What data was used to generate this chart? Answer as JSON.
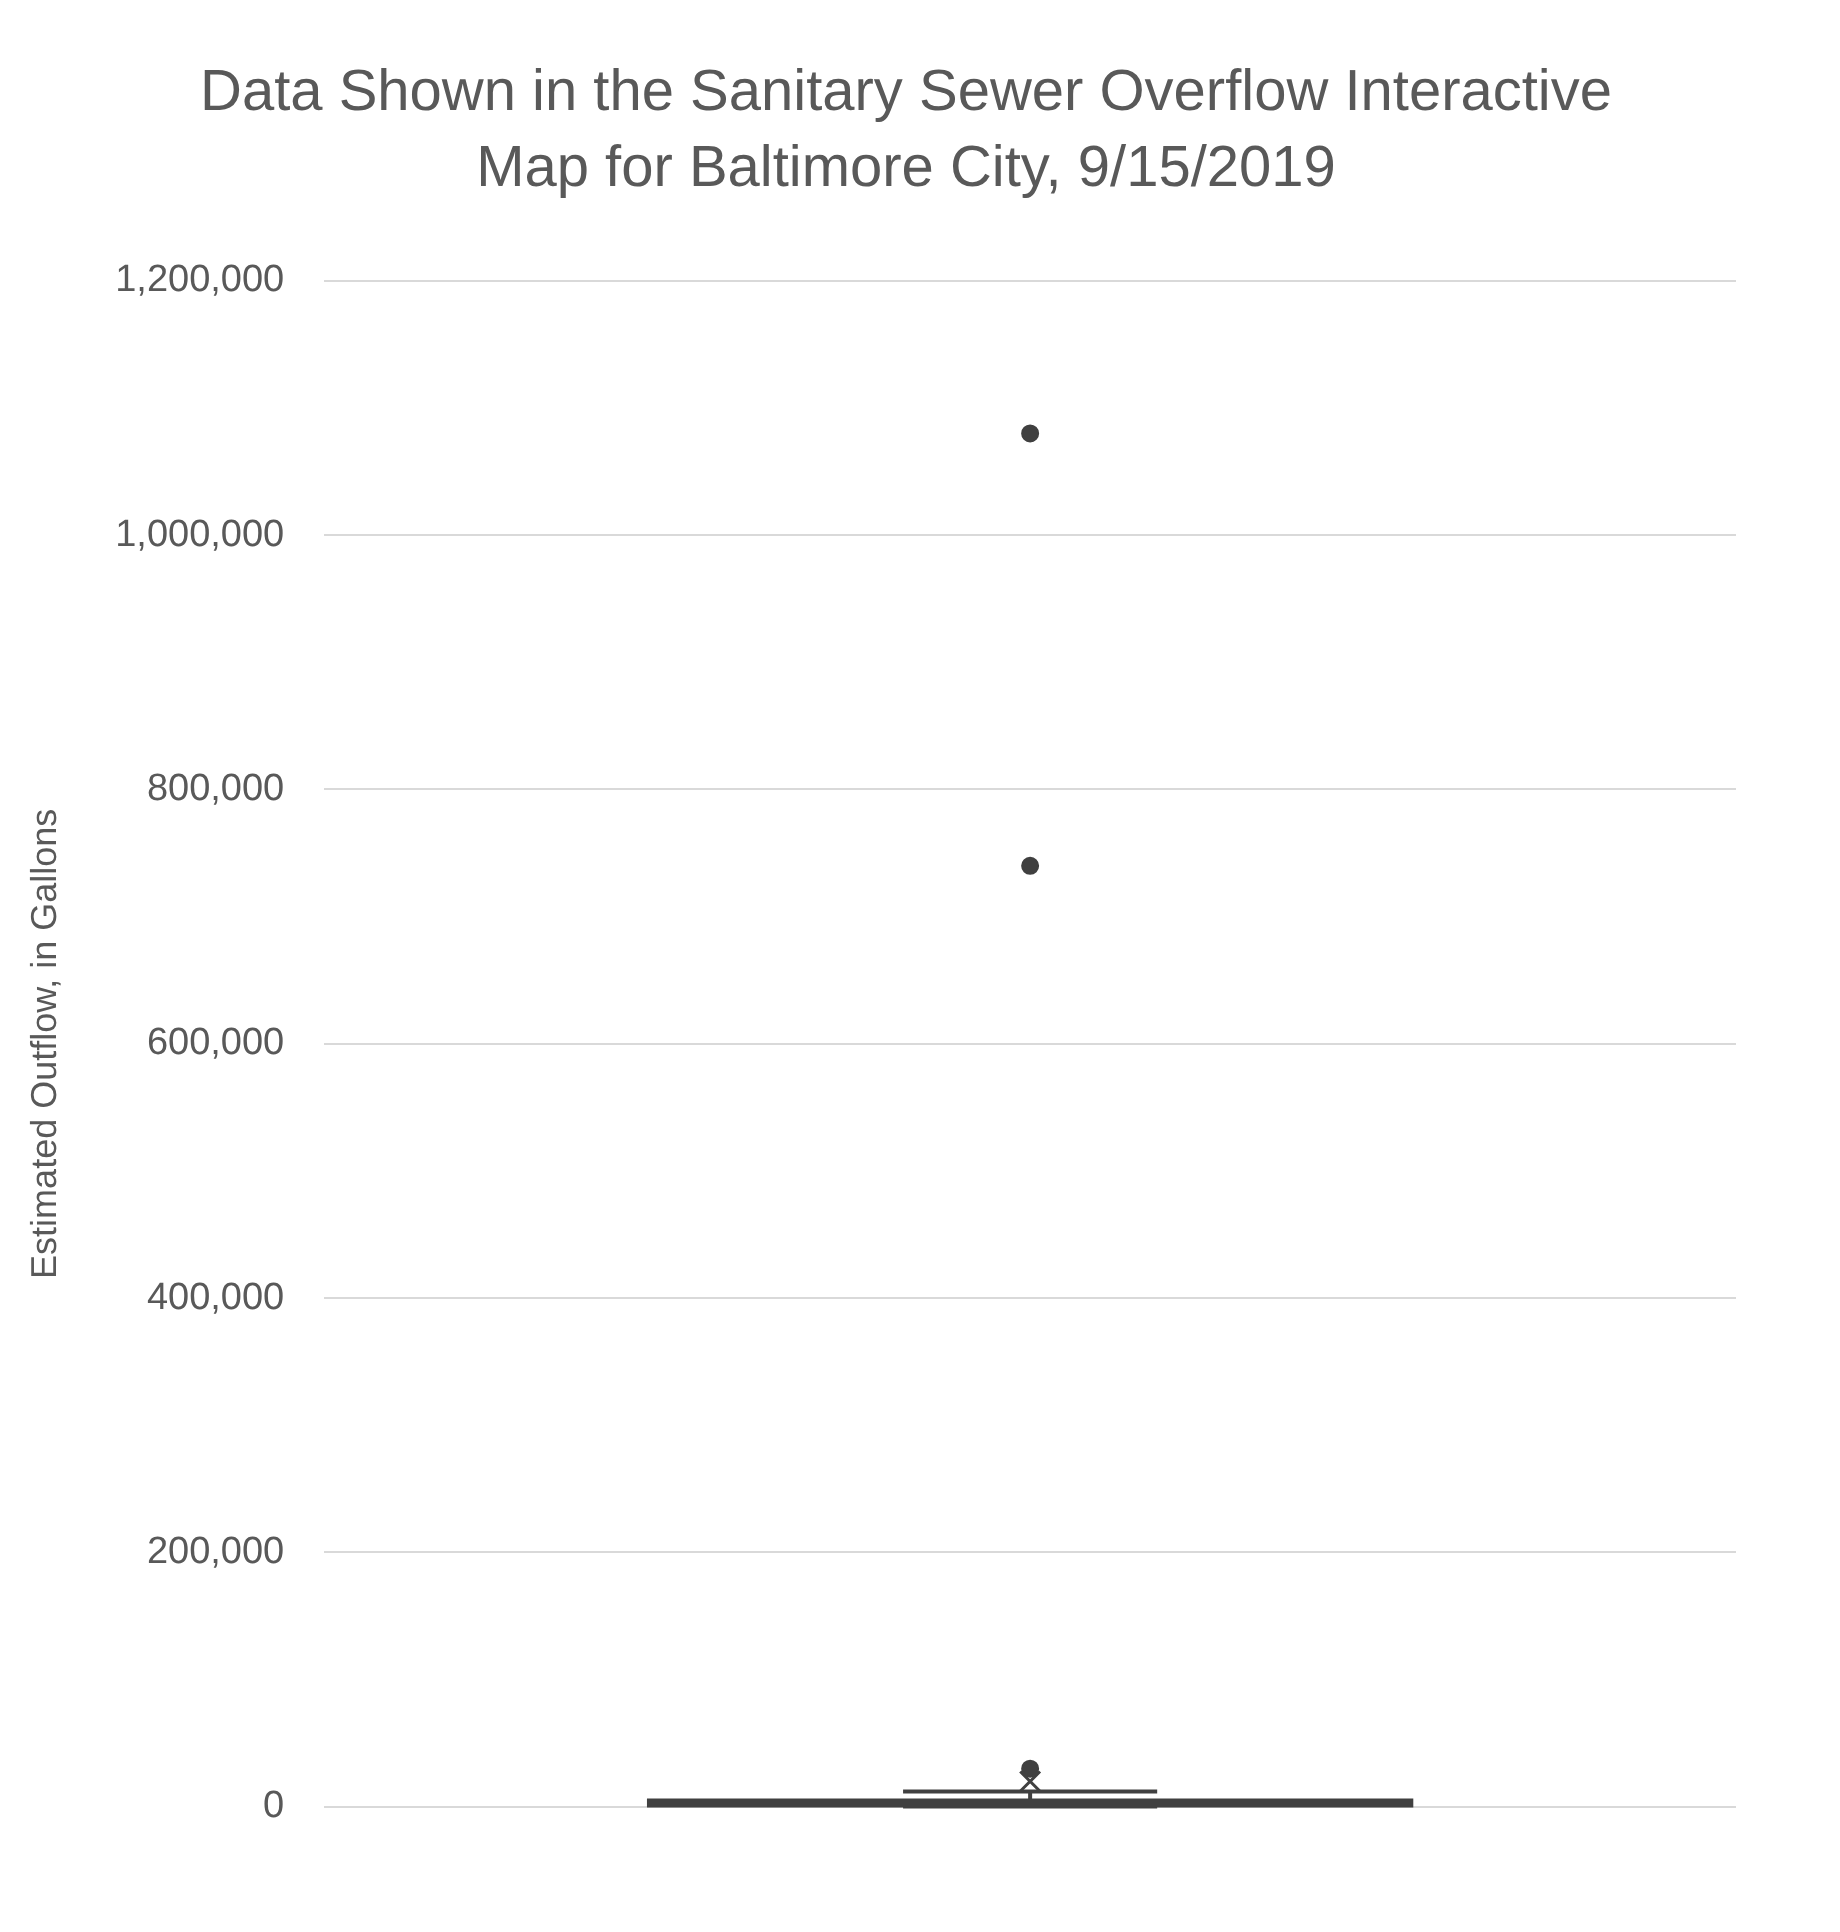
{
  "chart_data": {
    "type": "box",
    "title": "Data Shown  in the Sanitary Sewer Overflow Interactive Map for Baltimore City, 9/15/2019",
    "ylabel": "Estimated Outflow, in Gallons",
    "categories": [
      null
    ],
    "color": "#404040",
    "boxes": [
      {
        "low": 200,
        "q1": 1000,
        "median": 2000,
        "q3": 5000,
        "high": 12000,
        "mean": 20000,
        "outliers": [
          30000,
          740000,
          1080000
        ]
      }
    ],
    "ylim": [
      0,
      1200000
    ],
    "yticks": [
      0,
      {
        "value": 200000,
        "label": "200,000"
      },
      {
        "value": 400000,
        "label": "400,000"
      },
      {
        "value": 600000,
        "label": "600,000"
      },
      {
        "value": 800000,
        "label": "800,000"
      },
      {
        "value": 1000000,
        "label": "1,000,000"
      },
      {
        "value": 1200000,
        "label": "1,200,000"
      }
    ],
    "grid": "y",
    "legend": false
  }
}
